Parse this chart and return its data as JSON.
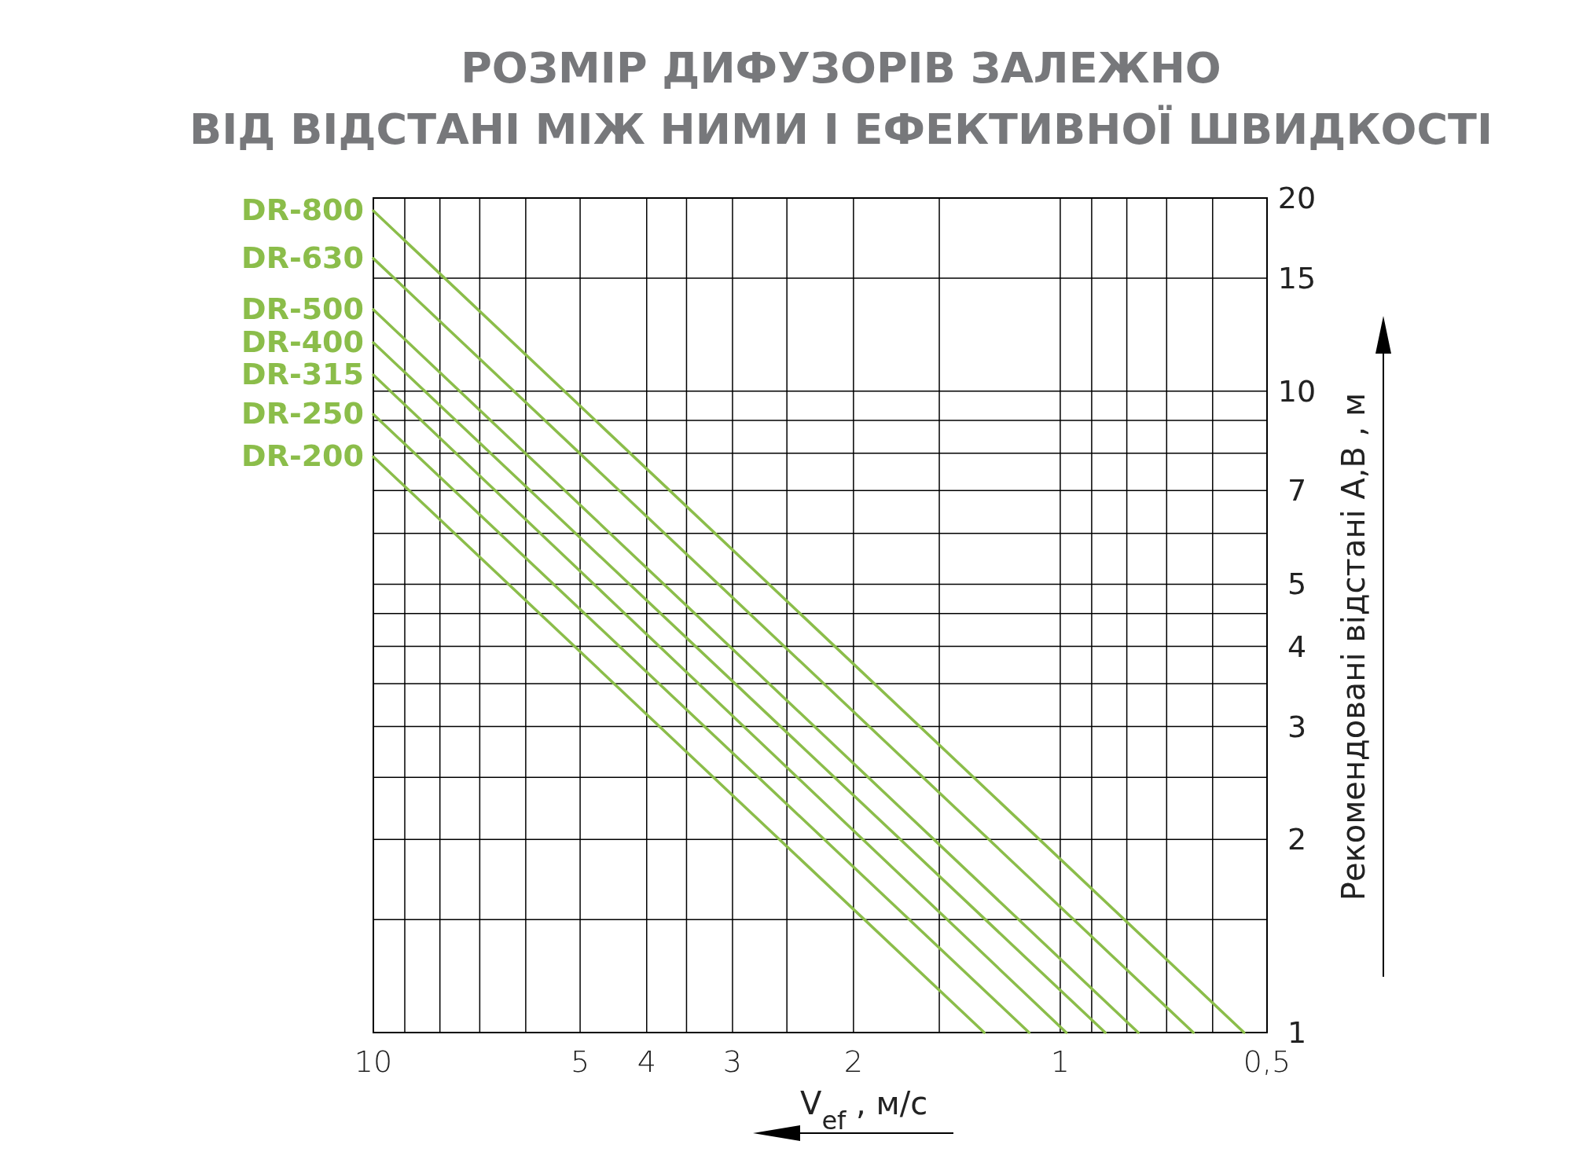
{
  "chart_data": {
    "type": "line",
    "title": "РОЗМІР ДИФУЗОРІВ ЗАЛЕЖНО\nВІД ВІДСТАНІ МІЖ НИМИ І ЕФЕКТИВНОЇ ШВИДКОСТІ",
    "xlabel": "V$_{ef}$ , м/с",
    "ylabel": "Рекомендовані відстані А,В , м",
    "log": "xy",
    "grid": true,
    "marker": "none",
    "line_style": "solid",
    "xlim": [
      10,
      0.5
    ],
    "ylim": [
      1,
      20
    ],
    "xticks": [
      10,
      {
        "value": 9,
        "label": null
      },
      {
        "value": 8,
        "label": null
      },
      {
        "value": 7,
        "label": null
      },
      {
        "value": 6,
        "label": null
      },
      5,
      4,
      {
        "value": 3.5,
        "label": null
      },
      3,
      {
        "value": 2.5,
        "label": null
      },
      2,
      {
        "value": 1.5,
        "label": null
      },
      1,
      {
        "value": 0.9,
        "label": null
      },
      {
        "value": 0.8,
        "label": null
      },
      {
        "value": 0.7,
        "label": null
      },
      {
        "value": 0.6,
        "label": null
      },
      {
        "value": 0.5,
        "label": "0,5"
      }
    ],
    "yticks": [
      1,
      {
        "value": 1.5,
        "label": null
      },
      2,
      {
        "value": 2.5,
        "label": null
      },
      3,
      {
        "value": 3.5,
        "label": null
      },
      4,
      {
        "value": 4.5,
        "label": null
      },
      5,
      {
        "value": 6,
        "label": null
      },
      7,
      {
        "value": 8,
        "label": null
      },
      {
        "value": 9,
        "label": null
      },
      10,
      15,
      20
    ],
    "series": [
      {
        "name": "DR-800",
        "color": "#8bbd4a",
        "x": [
          10,
          0.54
        ],
        "values": [
          19.1,
          1
        ]
      },
      {
        "name": "DR-630",
        "color": "#8bbd4a",
        "x": [
          10,
          0.64
        ],
        "values": [
          16.1,
          1
        ]
      },
      {
        "name": "DR-500",
        "color": "#8bbd4a",
        "x": [
          10,
          0.77
        ],
        "values": [
          13.4,
          1
        ]
      },
      {
        "name": "DR-400",
        "color": "#8bbd4a",
        "x": [
          10,
          0.86
        ],
        "values": [
          11.9,
          1
        ]
      },
      {
        "name": "DR-315",
        "color": "#8bbd4a",
        "x": [
          10,
          0.98
        ],
        "values": [
          10.6,
          1
        ]
      },
      {
        "name": "DR-250",
        "color": "#8bbd4a",
        "x": [
          10,
          1.11
        ],
        "values": [
          9.2,
          1
        ]
      },
      {
        "name": "DR-200",
        "color": "#8bbd4a",
        "x": [
          10,
          1.29
        ],
        "values": [
          7.9,
          1
        ]
      }
    ]
  }
}
